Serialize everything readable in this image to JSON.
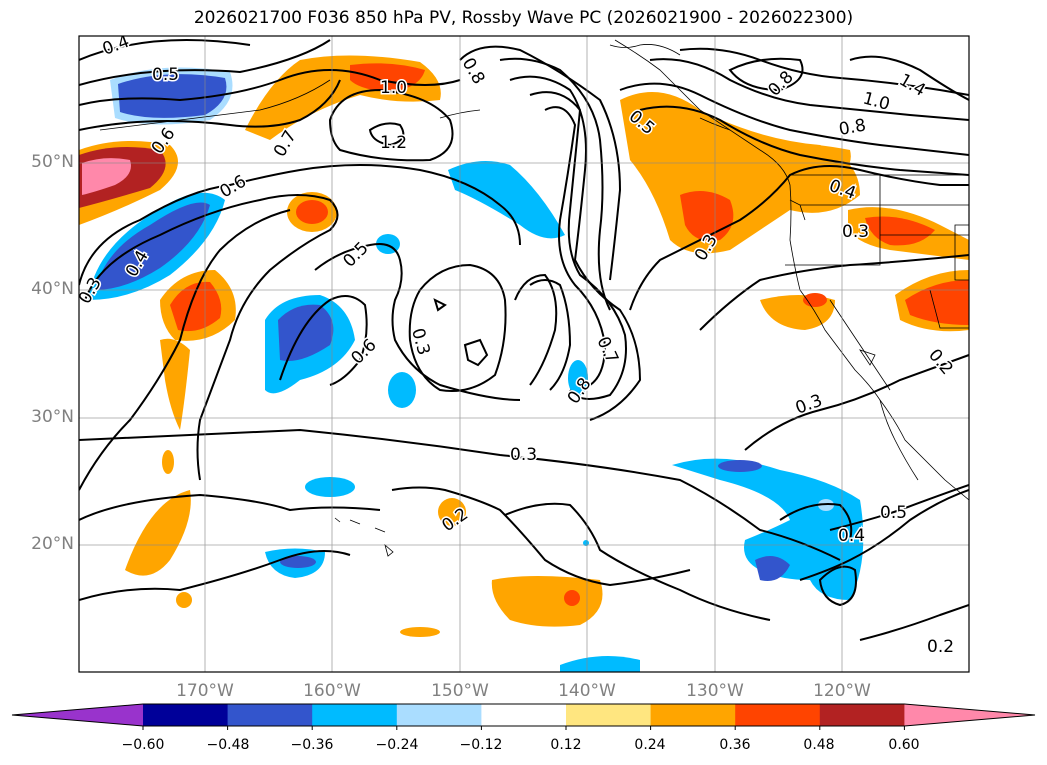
{
  "title": "2026021700 F036 850 hPa PV, Rossby Wave PC (2026021900 - 2026022300)",
  "lat_labels": [
    "50°N",
    "40°N",
    "30°N",
    "20°N"
  ],
  "lon_labels": [
    "170°W",
    "160°W",
    "150°W",
    "140°W",
    "130°W",
    "120°W"
  ],
  "colorbar": {
    "ticks": [
      "−0.60",
      "−0.48",
      "−0.36",
      "−0.24",
      "−0.12",
      "0.12",
      "0.24",
      "0.36",
      "0.48",
      "0.60"
    ],
    "colors": [
      "#9933cc",
      "#000099",
      "#3355cc",
      "#00bbff",
      "#aaddff",
      "#ffffff",
      "#ffe680",
      "#ffa500",
      "#ff4400",
      "#b22222",
      "#ff88aa"
    ]
  },
  "contour_labels": [
    "0.4",
    "0.5",
    "0.6",
    "1.0",
    "1.2",
    "0.8",
    "0.7",
    "0.5",
    "0.6",
    "0.4",
    "0.3",
    "0.5",
    "0.3",
    "0.6",
    "0.7",
    "0.8",
    "0.3",
    "0.2",
    "0.5",
    "1.0",
    "1.4",
    "0.8",
    "0.8",
    "0.4",
    "0.3",
    "0.3",
    "0.3",
    "0.2",
    "0.5",
    "0.4",
    "0.2"
  ]
}
